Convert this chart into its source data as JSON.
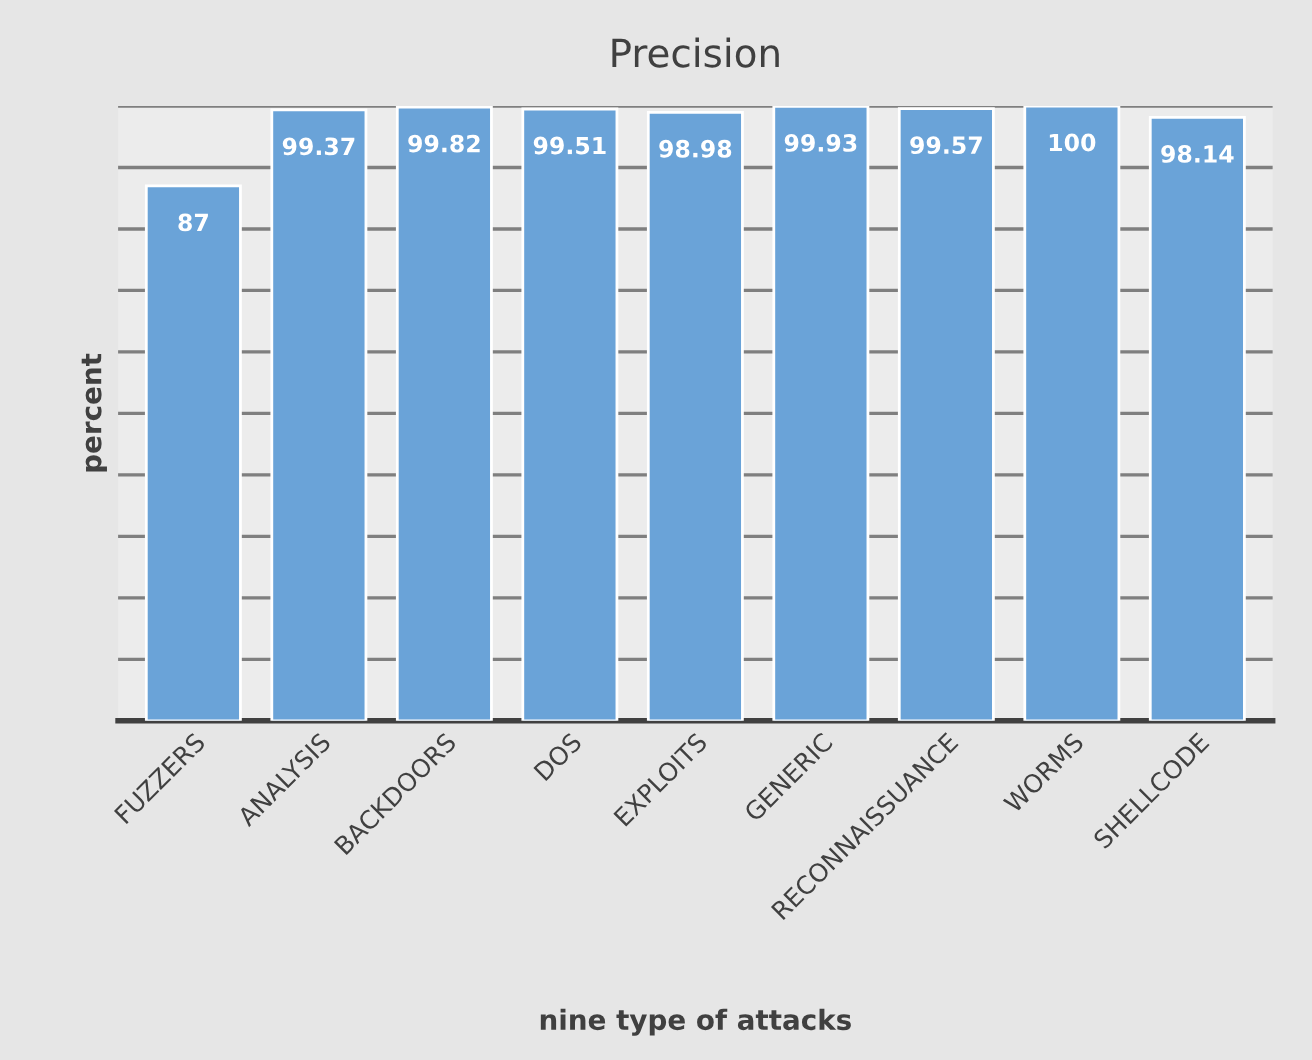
{
  "chart_data": {
    "type": "bar",
    "title": "Precision",
    "xlabel": "nine type of attacks",
    "ylabel": "percent",
    "categories": [
      "FUZZERS",
      "ANALYSIS",
      "BACKDOORS",
      "DOS",
      "EXPLOITS",
      "GENERIC",
      "RECONNAISSUANCE",
      "WORMS",
      "SHELLCODE"
    ],
    "values": [
      87,
      99.37,
      99.82,
      99.51,
      98.98,
      99.93,
      99.57,
      100,
      98.14
    ],
    "color": "#6aa3d8",
    "ylim": [
      0,
      100
    ],
    "yticks": [
      {
        "value": 0,
        "label": null
      },
      {
        "value": 10,
        "label": null
      },
      {
        "value": 20,
        "label": null
      },
      {
        "value": 30,
        "label": null
      },
      {
        "value": 40,
        "label": null
      },
      {
        "value": 50,
        "label": null
      },
      {
        "value": 60,
        "label": null
      },
      {
        "value": 70,
        "label": null
      },
      {
        "value": 80,
        "label": null
      },
      {
        "value": 90,
        "label": null
      },
      {
        "value": 100,
        "label": null
      }
    ],
    "grid": "y",
    "tick_labels": "x",
    "data_labels": true
  }
}
